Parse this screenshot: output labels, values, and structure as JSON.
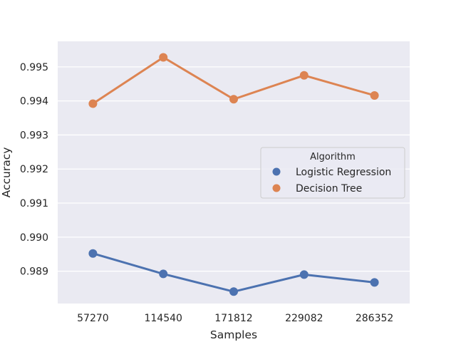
{
  "chart_data": {
    "type": "line",
    "style": "point plot with markers",
    "xlabel": "Samples",
    "ylabel": "Accuracy",
    "categories": [
      "57270",
      "114540",
      "171812",
      "229082",
      "286352"
    ],
    "ylim": [
      0.98805,
      0.99575
    ],
    "yticks": [
      0.989,
      0.99,
      0.991,
      0.992,
      0.993,
      0.994,
      0.995
    ],
    "ytick_labels": [
      "0.989",
      "0.990",
      "0.991",
      "0.992",
      "0.993",
      "0.994",
      "0.995"
    ],
    "grid": true,
    "background": "#eaeaf2",
    "legend": {
      "title": "Algorithm",
      "placement": "center-right"
    },
    "series": [
      {
        "name": "Logistic Regression",
        "color": "#4c72b0",
        "values": [
          0.98952,
          0.98892,
          0.9884,
          0.9889,
          0.98867
        ]
      },
      {
        "name": "Decision Tree",
        "color": "#dd8452",
        "values": [
          0.99392,
          0.99528,
          0.99405,
          0.99475,
          0.99416
        ]
      }
    ]
  }
}
